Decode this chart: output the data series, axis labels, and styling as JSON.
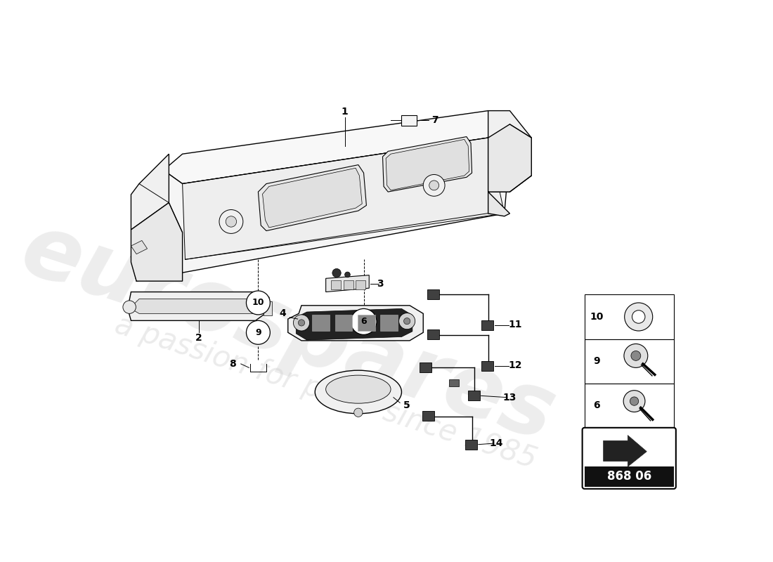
{
  "bg_color": "#ffffff",
  "lc": "#000000",
  "part_code": "868 06",
  "legend_items": [
    {
      "num": 10
    },
    {
      "num": 9
    },
    {
      "num": 6
    }
  ],
  "wm1": "eurospares",
  "wm2": "a passion for parts since 1985"
}
